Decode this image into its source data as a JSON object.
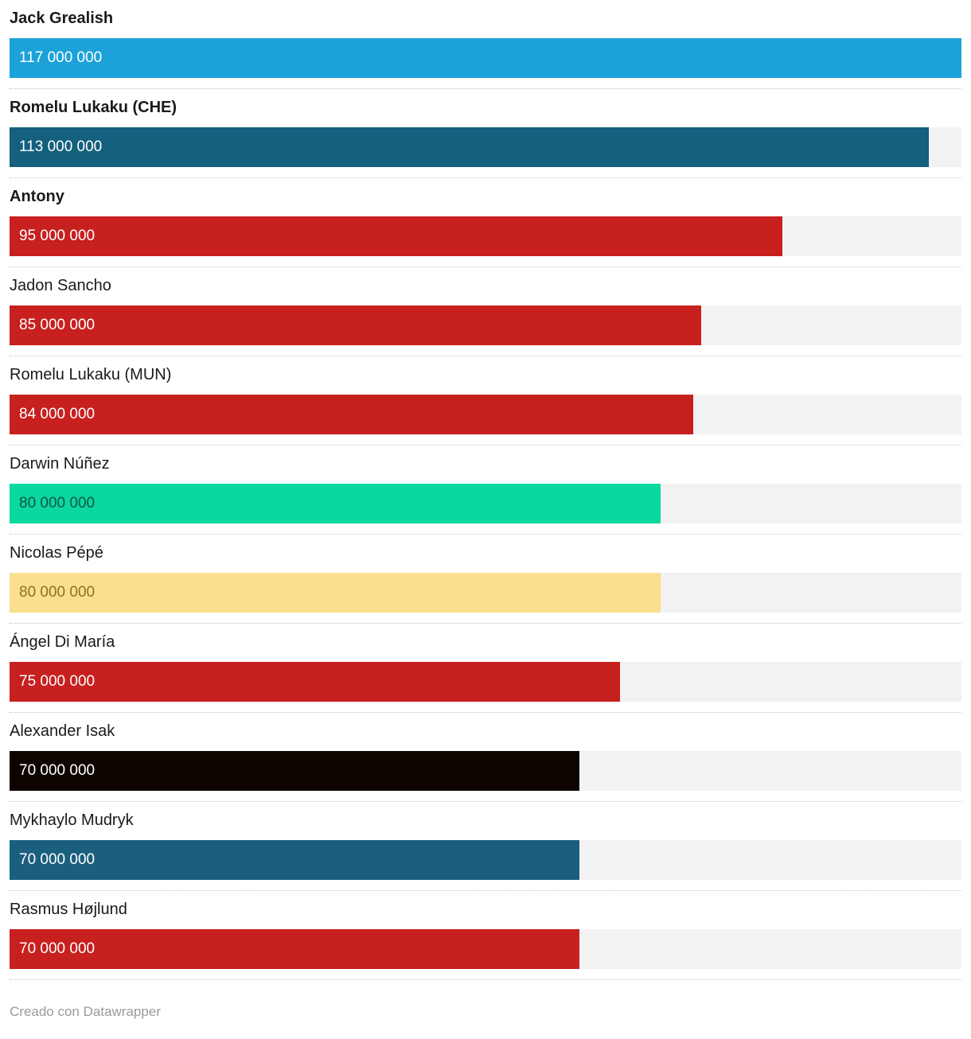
{
  "chart_data": {
    "type": "bar",
    "orientation": "horizontal",
    "xlim": [
      0,
      117000000
    ],
    "grid": false,
    "track_color": "#f2f2f2",
    "rows": [
      {
        "label": "Jack Grealish",
        "bold": true,
        "value": 117000000,
        "value_label": "117 000 000",
        "bar_color": "#1ca2d9",
        "text_color": "#ffffff"
      },
      {
        "label": "Romelu Lukaku (CHE)",
        "bold": true,
        "value": 113000000,
        "value_label": "113 000 000",
        "bar_color": "#14607e",
        "text_color": "#ffffff"
      },
      {
        "label": "Antony",
        "bold": true,
        "value": 95000000,
        "value_label": "95 000 000",
        "bar_color": "#c7201f",
        "text_color": "#ffffff"
      },
      {
        "label": "Jadon Sancho",
        "bold": false,
        "value": 85000000,
        "value_label": "85 000 000",
        "bar_color": "#c7201f",
        "text_color": "#ffffff"
      },
      {
        "label": "Romelu Lukaku (MUN)",
        "bold": false,
        "value": 84000000,
        "value_label": "84 000 000",
        "bar_color": "#c7201f",
        "text_color": "#ffffff"
      },
      {
        "label": "Darwin Núñez",
        "bold": false,
        "value": 80000000,
        "value_label": "80 000 000",
        "bar_color": "#0bd8a0",
        "text_color": "#0a5843"
      },
      {
        "label": "Nicolas Pépé",
        "bold": false,
        "value": 80000000,
        "value_label": "80 000 000",
        "bar_color": "#fadf8e",
        "text_color": "#8a7125"
      },
      {
        "label": "Ángel Di María",
        "bold": false,
        "value": 75000000,
        "value_label": "75 000 000",
        "bar_color": "#c7201f",
        "text_color": "#ffffff"
      },
      {
        "label": "Alexander Isak",
        "bold": false,
        "value": 70000000,
        "value_label": "70 000 000",
        "bar_color": "#0d0400",
        "text_color": "#ffffff"
      },
      {
        "label": "Mykhaylo Mudryk",
        "bold": false,
        "value": 70000000,
        "value_label": "70 000 000",
        "bar_color": "#1b5f7e",
        "text_color": "#ffffff"
      },
      {
        "label": "Rasmus Højlund",
        "bold": false,
        "value": 70000000,
        "value_label": "70 000 000",
        "bar_color": "#c7201f",
        "text_color": "#ffffff"
      }
    ]
  },
  "footer": {
    "credit": "Creado con Datawrapper"
  }
}
